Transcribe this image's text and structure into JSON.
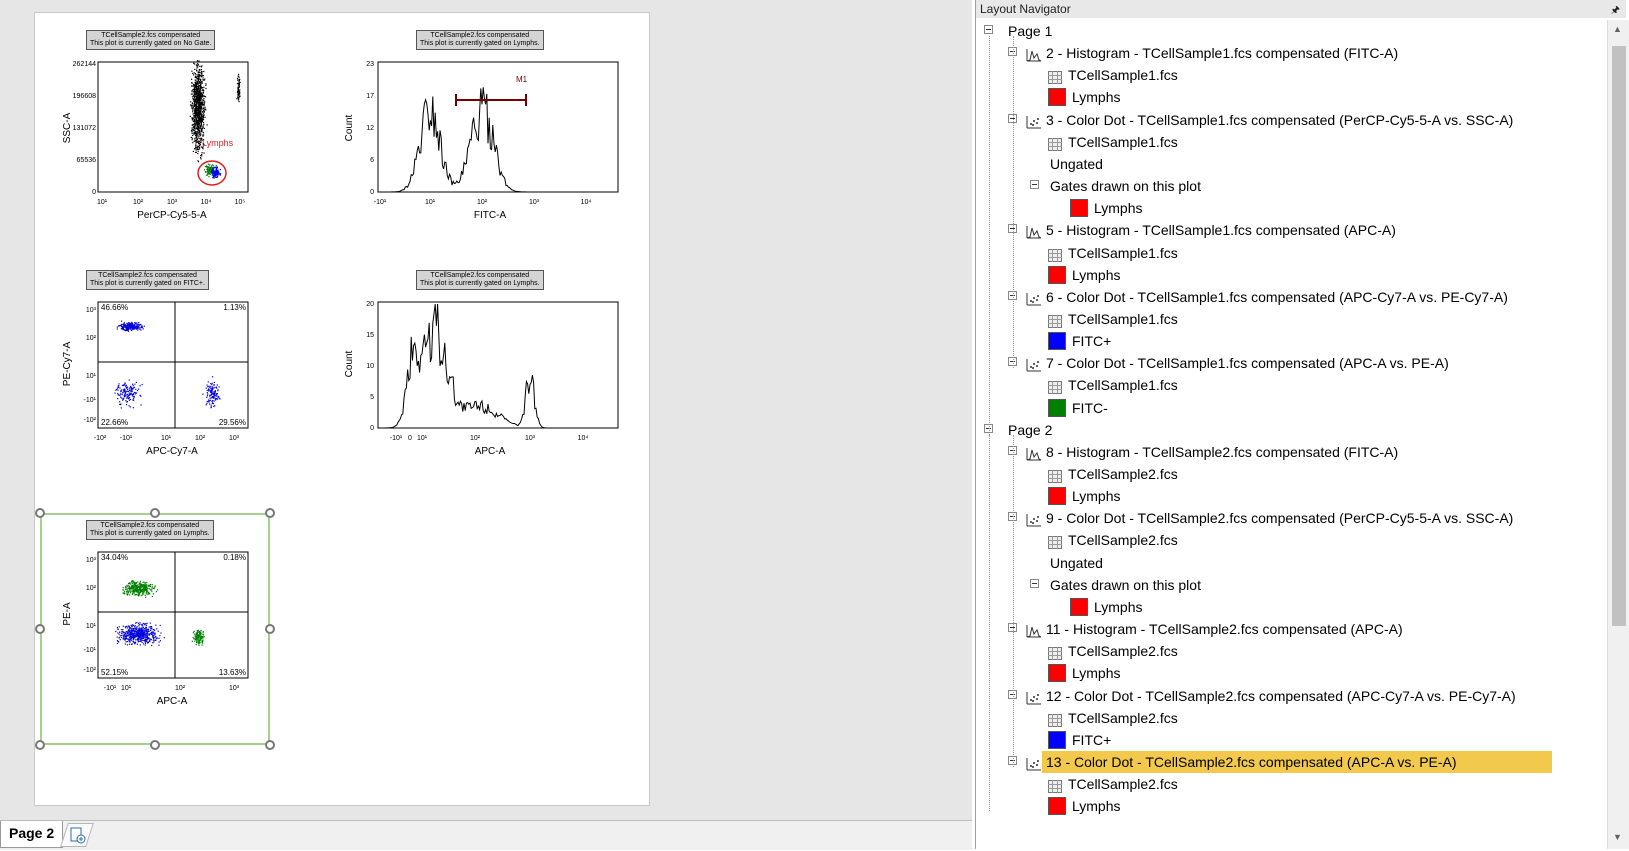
{
  "app": {
    "navigator_title": "Layout Navigator"
  },
  "page_tabs": {
    "active_tab": "Page 2"
  },
  "plots": [
    {
      "note": [
        "TCellSample2.fcs compensated",
        "This plot is currently gated on No Gate."
      ],
      "xlabel": "PerCP-Cy5-5-A",
      "ylabel": "SSC-A",
      "yticks": [
        "262144",
        "196608",
        "131072",
        "65536",
        "0"
      ],
      "xticks": [
        "10¹",
        "10²",
        "10³",
        "10⁴",
        "10⁵"
      ],
      "gate_label": "Lymphs"
    },
    {
      "note": [
        "TCellSample2.fcs compensated",
        "This plot is currently gated on Lymphs."
      ],
      "xlabel": "FITC-A",
      "ylabel": "Count",
      "yticks": [
        "23",
        "17",
        "12",
        "6",
        "0"
      ],
      "xticks": [
        "-10¹",
        "10¹",
        "10²",
        "10³",
        "10⁴"
      ],
      "marker_label": "M1"
    },
    {
      "note": [
        "TCellSample2.fcs compensated",
        "This plot is currently gated on FITC+."
      ],
      "xlabel": "APC-Cy7-A",
      "ylabel": "PE-Cy7-A",
      "yticks": [
        "10³",
        "10²",
        "10¹",
        "-10¹",
        "-10²"
      ],
      "xticks": [
        "-10²",
        "-10¹",
        "10¹",
        "10²",
        "10³"
      ],
      "quadrants": [
        "46.66%",
        "1.13%",
        "22.66%",
        "29.56%"
      ]
    },
    {
      "note": [
        "TCellSample2.fcs compensated",
        "This plot is currently gated on Lymphs."
      ],
      "xlabel": "APC-A",
      "ylabel": "Count",
      "yticks": [
        "20",
        "15",
        "10",
        "5",
        "0"
      ],
      "xticks": [
        "-10¹",
        "0",
        "10¹",
        "10²",
        "10³",
        "10⁴"
      ]
    },
    {
      "note": [
        "TCellSample2.fcs compensated",
        "This plot is currently gated on Lymphs."
      ],
      "xlabel": "APC-A",
      "ylabel": "PE-A",
      "yticks": [
        "10³",
        "10²",
        "10¹",
        "-10¹",
        "-10²"
      ],
      "xticks": [
        "-10¹",
        "10¹",
        "10²",
        "10³"
      ],
      "quadrants": [
        "34.04%",
        "0.18%",
        "52.15%",
        "13.63%"
      ]
    }
  ],
  "tree": [
    {
      "level": 0,
      "kind": "page",
      "label": "Page 1"
    },
    {
      "level": 1,
      "kind": "histogram",
      "label": "2 - Histogram - TCellSample1.fcs compensated (FITC-A)"
    },
    {
      "level": 2,
      "kind": "data",
      "label": "TCellSample1.fcs"
    },
    {
      "level": 2,
      "kind": "gate",
      "color": "#ff0000",
      "label": "Lymphs"
    },
    {
      "level": 1,
      "kind": "dot",
      "label": "3 - Color Dot - TCellSample1.fcs compensated (PerCP-Cy5-5-A vs. SSC-A)"
    },
    {
      "level": 2,
      "kind": "data",
      "label": "TCellSample1.fcs"
    },
    {
      "level": 2,
      "kind": "text",
      "label": "Ungated"
    },
    {
      "level": 2,
      "kind": "group",
      "label": "Gates drawn on this plot"
    },
    {
      "level": 3,
      "kind": "gate",
      "color": "#ff0000",
      "label": "Lymphs"
    },
    {
      "level": 1,
      "kind": "histogram",
      "label": "5 - Histogram - TCellSample1.fcs compensated (APC-A)"
    },
    {
      "level": 2,
      "kind": "data",
      "label": "TCellSample1.fcs"
    },
    {
      "level": 2,
      "kind": "gate",
      "color": "#ff0000",
      "label": "Lymphs"
    },
    {
      "level": 1,
      "kind": "dot",
      "label": "6 - Color Dot - TCellSample1.fcs compensated (APC-Cy7-A vs. PE-Cy7-A)"
    },
    {
      "level": 2,
      "kind": "data",
      "label": "TCellSample1.fcs"
    },
    {
      "level": 2,
      "kind": "gate",
      "color": "#0000ff",
      "label": "FITC+"
    },
    {
      "level": 1,
      "kind": "dot",
      "label": "7 - Color Dot - TCellSample1.fcs compensated (APC-A vs. PE-A)"
    },
    {
      "level": 2,
      "kind": "data",
      "label": "TCellSample1.fcs"
    },
    {
      "level": 2,
      "kind": "gate",
      "color": "#008000",
      "label": "FITC-"
    },
    {
      "level": 0,
      "kind": "page",
      "label": "Page 2"
    },
    {
      "level": 1,
      "kind": "histogram",
      "label": "8 - Histogram - TCellSample2.fcs compensated (FITC-A)"
    },
    {
      "level": 2,
      "kind": "data",
      "label": "TCellSample2.fcs"
    },
    {
      "level": 2,
      "kind": "gate",
      "color": "#ff0000",
      "label": "Lymphs"
    },
    {
      "level": 1,
      "kind": "dot",
      "label": "9 - Color Dot - TCellSample2.fcs compensated (PerCP-Cy5-5-A vs. SSC-A)"
    },
    {
      "level": 2,
      "kind": "data",
      "label": "TCellSample2.fcs"
    },
    {
      "level": 2,
      "kind": "text",
      "label": "Ungated"
    },
    {
      "level": 2,
      "kind": "group",
      "label": "Gates drawn on this plot"
    },
    {
      "level": 3,
      "kind": "gate",
      "color": "#ff0000",
      "label": "Lymphs"
    },
    {
      "level": 1,
      "kind": "histogram",
      "label": "11 - Histogram - TCellSample2.fcs compensated (APC-A)"
    },
    {
      "level": 2,
      "kind": "data",
      "label": "TCellSample2.fcs"
    },
    {
      "level": 2,
      "kind": "gate",
      "color": "#ff0000",
      "label": "Lymphs"
    },
    {
      "level": 1,
      "kind": "dot",
      "label": "12 - Color Dot - TCellSample2.fcs compensated (APC-Cy7-A vs. PE-Cy7-A)"
    },
    {
      "level": 2,
      "kind": "data",
      "label": "TCellSample2.fcs"
    },
    {
      "level": 2,
      "kind": "gate",
      "color": "#0000ff",
      "label": "FITC+"
    },
    {
      "level": 1,
      "kind": "dot",
      "selected": true,
      "label": "13 - Color Dot - TCellSample2.fcs compensated (APC-A vs. PE-A)"
    },
    {
      "level": 2,
      "kind": "data",
      "label": "TCellSample2.fcs"
    },
    {
      "level": 2,
      "kind": "gate",
      "color": "#ff0000",
      "label": "Lymphs"
    }
  ],
  "colors": {
    "selection": "#a8d08d",
    "highlight": "#f2c94c"
  }
}
